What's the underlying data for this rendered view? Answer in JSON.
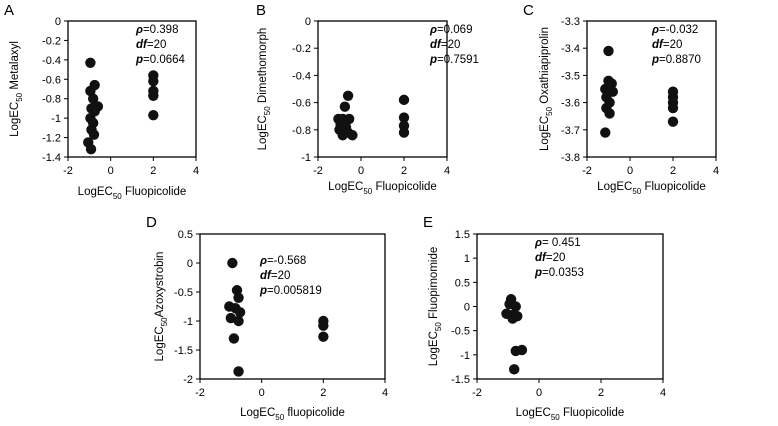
{
  "figure": {
    "colors": {
      "axis": "#000000",
      "marker": "#111111",
      "background": "#ffffff"
    }
  },
  "chart_data": [
    {
      "type": "scatter",
      "panel": "A",
      "xlabel": "LogEC50 Fluopicolide",
      "ylabel": "LogEC50 Metalaxyl",
      "xlabel_parts": {
        "pre": "LogEC",
        "sub": "50",
        "post": " Fluopicolide"
      },
      "ylabel_parts": {
        "pre": "LogEC",
        "sub": "50",
        "post": " Metalaxyl"
      },
      "xlim": [
        -2,
        4
      ],
      "ylim": [
        -1.4,
        0
      ],
      "xticks": [
        -2,
        0,
        2,
        4
      ],
      "yticks": [
        0,
        -0.2,
        -0.4,
        -0.6,
        -0.8,
        -1,
        -1.2,
        -1.4
      ],
      "stats": {
        "rho": "ρ=0.398",
        "df": "df=20",
        "p": "p=0.0664"
      },
      "stats_parts": {
        "rho_label": "ρ",
        "rho_value": "=0.398",
        "df_label": "df",
        "df_value": "=20",
        "p_label": "p",
        "p_value": "=0.0664"
      },
      "points": [
        {
          "x": -0.95,
          "y": -0.43
        },
        {
          "x": -0.75,
          "y": -0.66
        },
        {
          "x": -0.95,
          "y": -0.72
        },
        {
          "x": -0.82,
          "y": -0.8
        },
        {
          "x": -0.6,
          "y": -0.88
        },
        {
          "x": -0.9,
          "y": -0.9
        },
        {
          "x": -0.75,
          "y": -0.93
        },
        {
          "x": -0.95,
          "y": -1.0
        },
        {
          "x": -0.82,
          "y": -1.05
        },
        {
          "x": -0.9,
          "y": -1.12
        },
        {
          "x": -0.78,
          "y": -1.17
        },
        {
          "x": -1.05,
          "y": -1.25
        },
        {
          "x": -0.92,
          "y": -1.32
        },
        {
          "x": 2.0,
          "y": -0.56
        },
        {
          "x": 2.0,
          "y": -0.62
        },
        {
          "x": 2.0,
          "y": -0.72
        },
        {
          "x": 2.0,
          "y": -0.77
        },
        {
          "x": 2.0,
          "y": -0.97
        }
      ]
    },
    {
      "type": "scatter",
      "panel": "B",
      "xlabel": "LogEC50 Fluopicolide",
      "ylabel": "LogEC50 Dimethomorph",
      "xlabel_parts": {
        "pre": "LogEC",
        "sub": "50",
        "post": " Fluopicolide"
      },
      "ylabel_parts": {
        "pre": "LogEC",
        "sub": "50",
        "post": " Dimethomorph"
      },
      "xlim": [
        -2,
        4
      ],
      "ylim": [
        -1,
        0
      ],
      "xticks": [
        -2,
        0,
        2,
        4
      ],
      "yticks": [
        0,
        -0.2,
        -0.4,
        -0.6,
        -0.8,
        -1
      ],
      "stats": {
        "rho": "ρ=0.069",
        "df": "df=20",
        "p": "p=0.7591"
      },
      "stats_parts": {
        "rho_label": "ρ",
        "rho_value": "=0.069",
        "df_label": "df",
        "df_value": "=20",
        "p_label": "p",
        "p_value": "=0.7591"
      },
      "points": [
        {
          "x": -0.6,
          "y": -0.55
        },
        {
          "x": -0.75,
          "y": -0.63
        },
        {
          "x": -1.05,
          "y": -0.72
        },
        {
          "x": -0.85,
          "y": -0.72
        },
        {
          "x": -0.55,
          "y": -0.72
        },
        {
          "x": -0.95,
          "y": -0.76
        },
        {
          "x": -0.7,
          "y": -0.78
        },
        {
          "x": -1.0,
          "y": -0.8
        },
        {
          "x": -0.6,
          "y": -0.82
        },
        {
          "x": -0.85,
          "y": -0.84
        },
        {
          "x": -0.4,
          "y": -0.84
        },
        {
          "x": 2.0,
          "y": -0.58
        },
        {
          "x": 2.0,
          "y": -0.71
        },
        {
          "x": 2.0,
          "y": -0.77
        },
        {
          "x": 2.0,
          "y": -0.82
        }
      ]
    },
    {
      "type": "scatter",
      "panel": "C",
      "xlabel": "LogEC50 Fluopicolide",
      "ylabel": "LogEC50 Oxathiapiprolin",
      "xlabel_parts": {
        "pre": "LogEC",
        "sub": "50",
        "post": "  Fluopicolide"
      },
      "ylabel_parts": {
        "pre": "LogEC",
        "sub": "50",
        "post": " Oxathiapiprolin"
      },
      "xlim": [
        -2,
        4
      ],
      "ylim": [
        -3.8,
        -3.3
      ],
      "xticks": [
        -2,
        0,
        2,
        4
      ],
      "yticks": [
        -3.3,
        -3.4,
        -3.5,
        -3.6,
        -3.7,
        -3.8
      ],
      "stats": {
        "rho": "ρ=-0.032",
        "df": "df=20",
        "p": "p=0.8870"
      },
      "stats_parts": {
        "rho_label": "ρ",
        "rho_value": "=-0.032",
        "df_label": "df",
        "df_value": "=20",
        "p_label": "p",
        "p_value": "=0.8870"
      },
      "points": [
        {
          "x": -1.0,
          "y": -3.41
        },
        {
          "x": -1.0,
          "y": -3.52
        },
        {
          "x": -0.85,
          "y": -3.53
        },
        {
          "x": -1.15,
          "y": -3.55
        },
        {
          "x": -0.8,
          "y": -3.56
        },
        {
          "x": -1.1,
          "y": -3.58
        },
        {
          "x": -0.95,
          "y": -3.6
        },
        {
          "x": -1.1,
          "y": -3.62
        },
        {
          "x": -0.95,
          "y": -3.64
        },
        {
          "x": -1.15,
          "y": -3.71
        },
        {
          "x": 2.0,
          "y": -3.56
        },
        {
          "x": 2.0,
          "y": -3.58
        },
        {
          "x": 2.0,
          "y": -3.6
        },
        {
          "x": 2.0,
          "y": -3.62
        },
        {
          "x": 2.0,
          "y": -3.67
        }
      ]
    },
    {
      "type": "scatter",
      "panel": "D",
      "xlabel": "LogEC50 fluopicolide",
      "ylabel": "LogEC50Azoxystrobin",
      "xlabel_parts": {
        "pre": "LogEC",
        "sub": "50",
        "post": "  fluopicolide"
      },
      "ylabel_parts": {
        "pre": "LogEC",
        "sub": "50",
        "post": "Azoxystrobin"
      },
      "xlim": [
        -2,
        4
      ],
      "ylim": [
        -2,
        0.5
      ],
      "xticks": [
        -2,
        0,
        2,
        4
      ],
      "yticks": [
        0.5,
        0,
        -0.5,
        -1,
        -1.5,
        -2
      ],
      "stats": {
        "rho": "ρ=-0.568",
        "df": "df=20",
        "p": "p=0.005819"
      },
      "stats_parts": {
        "rho_label": "ρ",
        "rho_value": "=-0.568",
        "df_label": "df",
        "df_value": "=20",
        "p_label": "p",
        "p_value": "=0.005819"
      },
      "points": [
        {
          "x": -0.95,
          "y": 0.0
        },
        {
          "x": -0.8,
          "y": -0.47
        },
        {
          "x": -0.75,
          "y": -0.6
        },
        {
          "x": -1.05,
          "y": -0.75
        },
        {
          "x": -0.85,
          "y": -0.78
        },
        {
          "x": -0.7,
          "y": -0.85
        },
        {
          "x": -1.0,
          "y": -0.95
        },
        {
          "x": -0.75,
          "y": -1.0
        },
        {
          "x": -0.9,
          "y": -1.3
        },
        {
          "x": -0.75,
          "y": -1.87
        },
        {
          "x": 2.0,
          "y": -1.0
        },
        {
          "x": 2.0,
          "y": -1.08
        },
        {
          "x": 2.0,
          "y": -1.27
        }
      ]
    },
    {
      "type": "scatter",
      "panel": "E",
      "xlabel": "LogEC50 Fluopicolide",
      "ylabel": "LogEC50 Fluopimomide",
      "xlabel_parts": {
        "pre": "LogEC",
        "sub": "50",
        "post": " Fluopicolide"
      },
      "ylabel_parts": {
        "pre": "LogEC",
        "sub": "50",
        "post": " Fluopimomide"
      },
      "xlim": [
        -2,
        4
      ],
      "ylim": [
        -1.5,
        1.5
      ],
      "xticks": [
        -2,
        0,
        2,
        4
      ],
      "yticks": [
        1.5,
        1,
        0.5,
        0,
        -0.5,
        -1,
        -1.5
      ],
      "stats": {
        "rho": "ρ= 0.451",
        "df": "df=20",
        "p": "p=0.0353"
      },
      "stats_parts": {
        "rho_label": "ρ",
        "rho_value": "= 0.451",
        "df_label": "df",
        "df_value": "=20",
        "p_label": "p",
        "p_value": "=0.0353"
      },
      "points": [
        {
          "x": -0.9,
          "y": 0.15
        },
        {
          "x": -0.95,
          "y": 0.05
        },
        {
          "x": -0.75,
          "y": 0.0
        },
        {
          "x": -1.05,
          "y": -0.15
        },
        {
          "x": -0.9,
          "y": -0.18
        },
        {
          "x": -0.7,
          "y": -0.2
        },
        {
          "x": -0.85,
          "y": -0.25
        },
        {
          "x": -0.75,
          "y": -0.92
        },
        {
          "x": -0.55,
          "y": -0.9
        },
        {
          "x": -0.8,
          "y": -1.3
        }
      ]
    }
  ]
}
